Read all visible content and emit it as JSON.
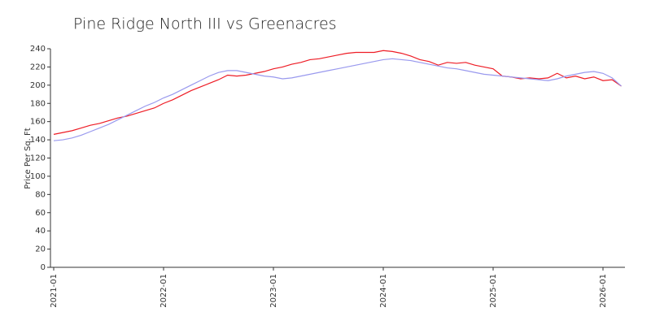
{
  "chart_data": {
    "type": "line",
    "title": "Pine Ridge North III vs Greenacres",
    "y_label": "Price Per Sq. Ft",
    "x": [
      "2021-01",
      "2021-02",
      "2021-03",
      "2021-04",
      "2021-05",
      "2021-06",
      "2021-07",
      "2021-08",
      "2021-09",
      "2021-10",
      "2021-11",
      "2021-12",
      "2022-01",
      "2022-02",
      "2022-03",
      "2022-04",
      "2022-05",
      "2022-06",
      "2022-07",
      "2022-08",
      "2022-09",
      "2022-10",
      "2022-11",
      "2022-12",
      "2023-01",
      "2023-02",
      "2023-03",
      "2023-04",
      "2023-05",
      "2023-06",
      "2023-07",
      "2023-08",
      "2023-09",
      "2023-10",
      "2023-11",
      "2023-12",
      "2024-01",
      "2024-02",
      "2024-03",
      "2024-04",
      "2024-05",
      "2024-06",
      "2024-07",
      "2024-08",
      "2024-09",
      "2024-10",
      "2024-11",
      "2024-12",
      "2025-01",
      "2025-02",
      "2025-03",
      "2025-04",
      "2025-05",
      "2025-06",
      "2025-07",
      "2025-08",
      "2025-09",
      "2025-10",
      "2025-11",
      "2025-12",
      "2026-01",
      "2026-02",
      "2026-03"
    ],
    "series": [
      {
        "color": "#ee1c25",
        "values": [
          146,
          148,
          150,
          153,
          156,
          158,
          161,
          164,
          166,
          169,
          172,
          175,
          180,
          184,
          189,
          194,
          198,
          202,
          206,
          211,
          210,
          211,
          213,
          215,
          218,
          220,
          223,
          225,
          228,
          229,
          231,
          233,
          235,
          236,
          236,
          236,
          238,
          237,
          235,
          232,
          228,
          226,
          222,
          225,
          224,
          225,
          222,
          220,
          218,
          210,
          209,
          207,
          208,
          207,
          208,
          213,
          208,
          210,
          207,
          209,
          205,
          206,
          199
        ]
      },
      {
        "color": "#9999ee",
        "values": [
          139,
          140,
          142,
          145,
          149,
          153,
          157,
          162,
          167,
          172,
          177,
          181,
          186,
          190,
          195,
          200,
          205,
          210,
          214,
          216,
          216,
          214,
          212,
          210,
          209,
          207,
          208,
          210,
          212,
          214,
          216,
          218,
          220,
          222,
          224,
          226,
          228,
          229,
          228,
          227,
          225,
          223,
          221,
          219,
          218,
          216,
          214,
          212,
          211,
          210,
          209,
          208,
          207,
          206,
          205,
          207,
          210,
          212,
          214,
          215,
          213,
          208,
          199
        ]
      }
    ],
    "ylim": [
      0,
      240
    ],
    "yticks": [
      0,
      20,
      40,
      60,
      80,
      100,
      120,
      140,
      160,
      180,
      200,
      220,
      240
    ],
    "xticks": [
      "2021-01",
      "2022-01",
      "2023-01",
      "2024-01",
      "2025-01",
      "2026-01"
    ]
  }
}
